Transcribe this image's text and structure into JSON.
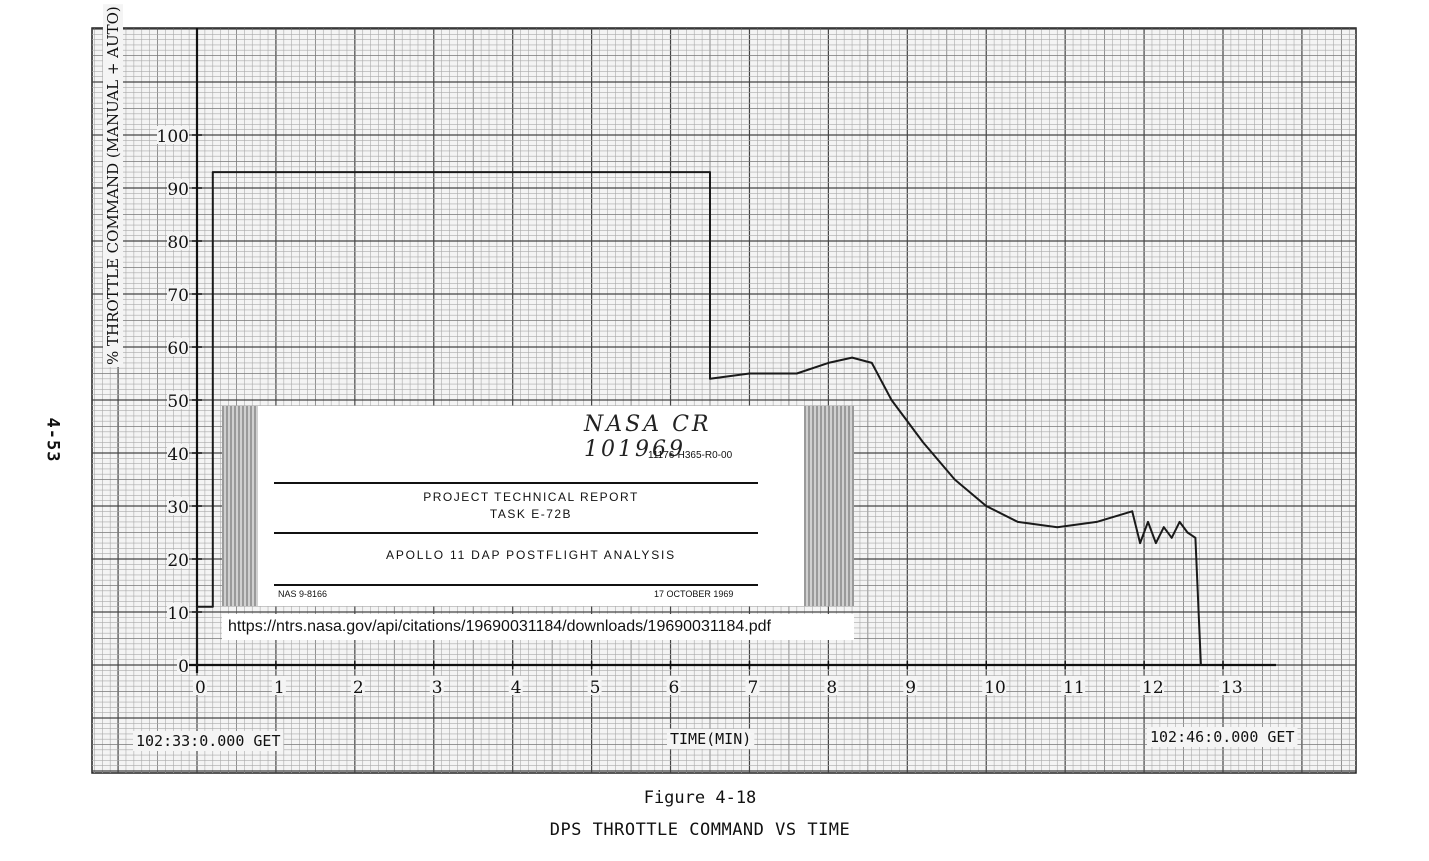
{
  "chart_data": {
    "type": "line",
    "title": "",
    "xlabel": "TIME(MIN)",
    "ylabel": "% THROTTLE COMMAND (MANUAL + AUTO)",
    "xlim": [
      0,
      13
    ],
    "ylim": [
      0,
      100
    ],
    "x_ticks": [
      "0",
      "1",
      "2",
      "3",
      "4",
      "5",
      "6",
      "7",
      "8",
      "9",
      "10",
      "11",
      "12",
      "13"
    ],
    "y_ticks": [
      "0",
      "10",
      "20",
      "30",
      "40",
      "50",
      "60",
      "70",
      "80",
      "90",
      "100"
    ],
    "start_label": "102:33:0.000 GET",
    "end_label": "102:46:0.000 GET",
    "grid": true,
    "series": [
      {
        "x": [
          0,
          0,
          0.2,
          0.2,
          6.5,
          6.5,
          7.0,
          7.6,
          8.0,
          8.3,
          8.55,
          8.8,
          9.2,
          9.6,
          10.0,
          10.4,
          10.9,
          11.4,
          11.85,
          11.95,
          12.05,
          12.15,
          12.25,
          12.35,
          12.45,
          12.55,
          12.65,
          12.72
        ],
        "y": [
          0,
          11,
          11,
          93,
          93,
          54,
          55,
          55,
          57,
          58,
          57,
          50,
          42,
          35,
          30,
          27,
          26,
          27,
          29,
          23,
          27,
          23,
          26,
          24,
          27,
          25,
          24,
          0
        ]
      }
    ]
  },
  "page": {
    "page_number": "4-53",
    "figure_number": "Figure 4-18",
    "figure_title": "DPS THROTTLE COMMAND VS TIME"
  },
  "inset": {
    "handwritten": "NASA CR 101969",
    "doc_number": "11176-H365-R0-00",
    "report_line1": "PROJECT TECHNICAL REPORT",
    "report_line2": "TASK E-72B",
    "report_title": "APOLLO 11 DAP POSTFLIGHT ANALYSIS",
    "contract": "NAS 9-8166",
    "date": "17 OCTOBER 1969",
    "url": "https://ntrs.nasa.gov/api/citations/19690031184/downloads/19690031184.pdf"
  }
}
